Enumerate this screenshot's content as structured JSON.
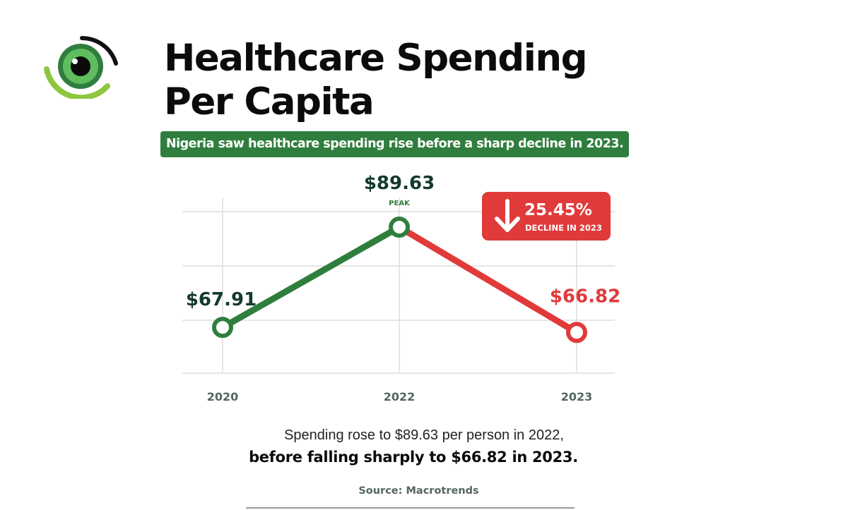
{
  "header": {
    "title_line1": "Healthcare Spending",
    "title_line2": "Per Capita",
    "subtitle": "Nigeria saw healthcare spending rise before a sharp decline in 2023."
  },
  "logo": {
    "icon": "eye-icon"
  },
  "chart_data": {
    "type": "line",
    "categories": [
      "2020",
      "2022",
      "2023"
    ],
    "values": [
      67.91,
      89.63,
      66.82
    ],
    "value_labels": [
      "$67.91",
      "$89.63",
      "$66.82"
    ],
    "peak_label": "PEAK",
    "ylim": [
      58,
      93
    ],
    "grid": true,
    "callout": {
      "value": "25.45%",
      "label": "DECLINE IN 2023",
      "icon": "arrow-down-icon"
    },
    "colors": {
      "rise": "#2f7e3d",
      "decline": "#e03a3a",
      "label_dark": "#143a2a",
      "axis_text": "#556660",
      "grid": "#dedede"
    }
  },
  "caption": {
    "line1": "Spending rose to $89.63 per person in 2022,",
    "line2": "before falling sharply to $66.82 in 2023."
  },
  "source": "Source: Macrotrends"
}
